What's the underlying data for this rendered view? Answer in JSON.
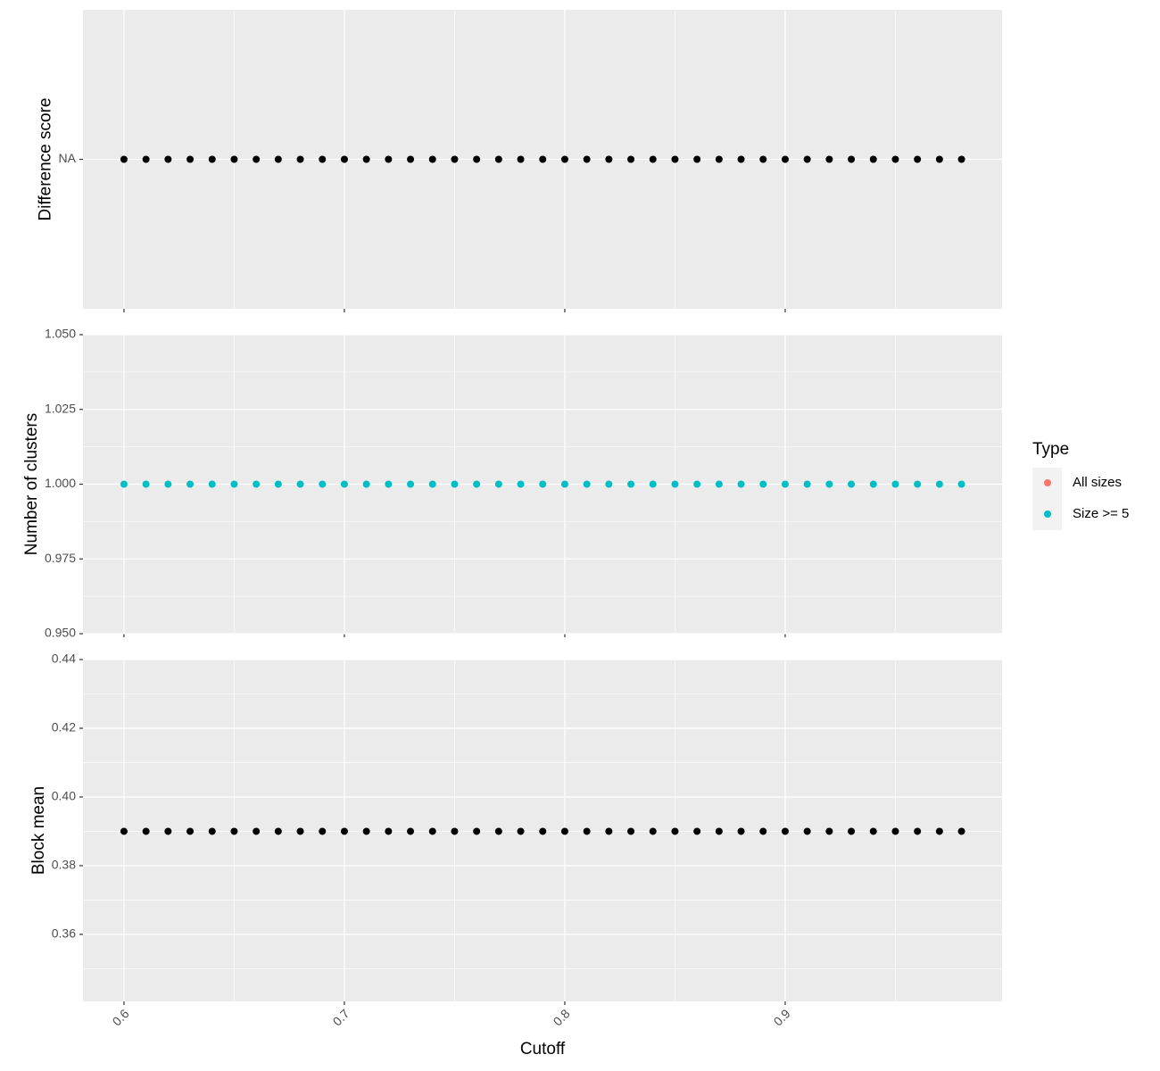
{
  "chart_data": [
    {
      "type": "scatter",
      "y_label": "Difference score",
      "x": [
        0.6,
        0.61,
        0.62,
        0.63,
        0.64,
        0.65,
        0.66,
        0.67,
        0.68,
        0.69,
        0.7,
        0.71,
        0.72,
        0.73,
        0.74,
        0.75,
        0.76,
        0.77,
        0.78,
        0.79,
        0.8,
        0.81,
        0.82,
        0.83,
        0.84,
        0.85,
        0.86,
        0.87,
        0.88,
        0.89,
        0.9,
        0.91,
        0.92,
        0.93,
        0.94,
        0.95,
        0.96,
        0.97,
        0.98
      ],
      "values": [
        "NA",
        "NA",
        "NA",
        "NA",
        "NA",
        "NA",
        "NA",
        "NA",
        "NA",
        "NA",
        "NA",
        "NA",
        "NA",
        "NA",
        "NA",
        "NA",
        "NA",
        "NA",
        "NA",
        "NA",
        "NA",
        "NA",
        "NA",
        "NA",
        "NA",
        "NA",
        "NA",
        "NA",
        "NA",
        "NA",
        "NA",
        "NA",
        "NA",
        "NA",
        "NA",
        "NA",
        "NA",
        "NA",
        "NA"
      ],
      "ycategories": [
        "NA"
      ],
      "color": "#000000",
      "xlim": [
        0.5814,
        0.9984
      ],
      "xticks": [
        0.6,
        0.7,
        0.8,
        0.9
      ],
      "grid": true
    },
    {
      "type": "scatter",
      "y_label": "Number of clusters",
      "x": [
        0.6,
        0.61,
        0.62,
        0.63,
        0.64,
        0.65,
        0.66,
        0.67,
        0.68,
        0.69,
        0.7,
        0.71,
        0.72,
        0.73,
        0.74,
        0.75,
        0.76,
        0.77,
        0.78,
        0.79,
        0.8,
        0.81,
        0.82,
        0.83,
        0.84,
        0.85,
        0.86,
        0.87,
        0.88,
        0.89,
        0.9,
        0.91,
        0.92,
        0.93,
        0.94,
        0.95,
        0.96,
        0.97,
        0.98
      ],
      "values": [
        1,
        1,
        1,
        1,
        1,
        1,
        1,
        1,
        1,
        1,
        1,
        1,
        1,
        1,
        1,
        1,
        1,
        1,
        1,
        1,
        1,
        1,
        1,
        1,
        1,
        1,
        1,
        1,
        1,
        1,
        1,
        1,
        1,
        1,
        1,
        1,
        1,
        1,
        1
      ],
      "color": "#00BFC4",
      "ylim": [
        0.95,
        1.05
      ],
      "yticks": [
        {
          "value": 0.95,
          "label": "0.950"
        },
        {
          "value": 0.975,
          "label": "0.975"
        },
        {
          "value": 1,
          "label": "1.000"
        },
        {
          "value": 1.025,
          "label": "1.025"
        },
        {
          "value": 1.05,
          "label": "1.050"
        }
      ],
      "xlim": [
        0.5814,
        0.9984
      ],
      "xticks": [
        0.6,
        0.7,
        0.8,
        0.9
      ],
      "grid": true,
      "legend_title": "Type",
      "legend": [
        {
          "name": "All sizes",
          "color": "#F8766D"
        },
        {
          "name": "Size >= 5",
          "color": "#00BFC4"
        }
      ]
    },
    {
      "type": "scatter",
      "y_label": "Block mean",
      "x_label": "Cutoff",
      "x": [
        0.6,
        0.61,
        0.62,
        0.63,
        0.64,
        0.65,
        0.66,
        0.67,
        0.68,
        0.69,
        0.7,
        0.71,
        0.72,
        0.73,
        0.74,
        0.75,
        0.76,
        0.77,
        0.78,
        0.79,
        0.8,
        0.81,
        0.82,
        0.83,
        0.84,
        0.85,
        0.86,
        0.87,
        0.88,
        0.89,
        0.9,
        0.91,
        0.92,
        0.93,
        0.94,
        0.95,
        0.96,
        0.97,
        0.98
      ],
      "values": [
        0.39,
        0.39,
        0.39,
        0.39,
        0.39,
        0.39,
        0.39,
        0.39,
        0.39,
        0.39,
        0.39,
        0.39,
        0.39,
        0.39,
        0.39,
        0.39,
        0.39,
        0.39,
        0.39,
        0.39,
        0.39,
        0.39,
        0.39,
        0.39,
        0.39,
        0.39,
        0.39,
        0.39,
        0.39,
        0.39,
        0.39,
        0.39,
        0.39,
        0.39,
        0.39,
        0.39,
        0.39,
        0.39,
        0.39
      ],
      "color": "#000000",
      "ylim": [
        0.3405,
        0.44
      ],
      "yticks": [
        0.36,
        0.38,
        {
          "value": 0.4,
          "label": "0.40"
        },
        0.42,
        0.44
      ],
      "xlim": [
        0.5814,
        0.9984
      ],
      "xticks": [
        0.6,
        0.7,
        0.8,
        0.9
      ],
      "grid": true
    }
  ]
}
